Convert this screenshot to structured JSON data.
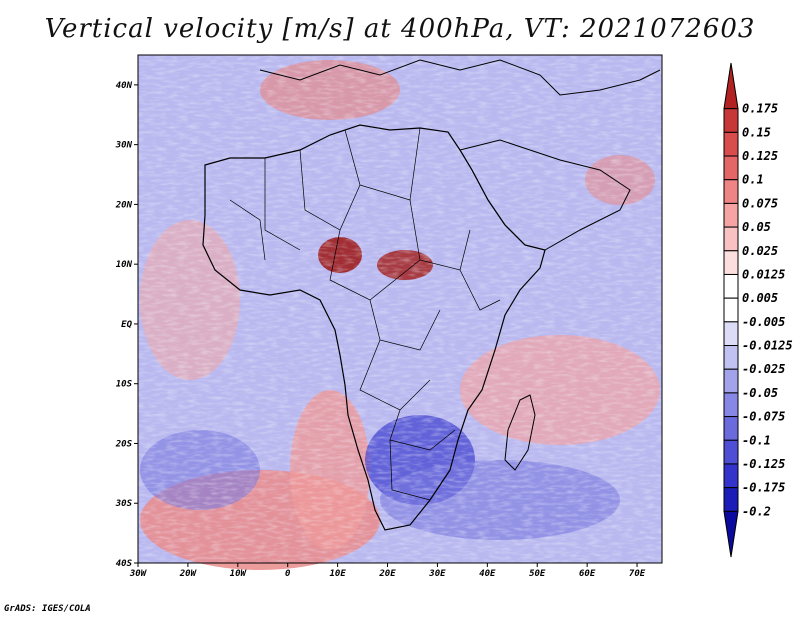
{
  "title": "Vertical velocity [m/s] at 400hPa, VT: 2021072603",
  "credit": "GrADS: IGES/COLA",
  "map": {
    "variable": "Vertical velocity",
    "units": "m/s",
    "level": "400hPa",
    "valid_time": "2021072603",
    "lon_range": [
      -30,
      75
    ],
    "lat_range": [
      -40,
      45
    ],
    "x_ticks": [
      "30W",
      "20W",
      "10W",
      "0",
      "10E",
      "20E",
      "30E",
      "40E",
      "50E",
      "60E",
      "70E"
    ],
    "y_ticks": [
      "40N",
      "30N",
      "20N",
      "10N",
      "EQ",
      "10S",
      "20S",
      "30S",
      "40S"
    ]
  },
  "colorbar": {
    "labels": [
      "0.175",
      "0.15",
      "0.125",
      "0.1",
      "0.075",
      "0.05",
      "0.025",
      "0.0125",
      "0.005",
      "-0.005",
      "-0.0125",
      "-0.025",
      "-0.05",
      "-0.075",
      "-0.1",
      "-0.125",
      "-0.175",
      "-0.2"
    ],
    "colors": [
      "#b22222",
      "#c83737",
      "#d94d4d",
      "#e56666",
      "#ef8484",
      "#f5a3a3",
      "#f9c1c1",
      "#fcdede",
      "#ffffff",
      "#ffffff",
      "#dcdcf7",
      "#c1c1f2",
      "#a3a3ec",
      "#8787e5",
      "#6b6bde",
      "#4f4fd6",
      "#3434cc",
      "#1c1cb8",
      "#0a0a9e"
    ]
  }
}
